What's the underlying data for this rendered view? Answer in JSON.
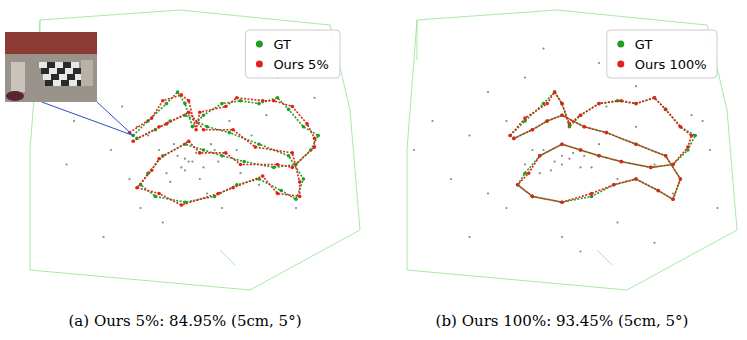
{
  "chart_data": [
    {
      "type": "scatter",
      "caption": "(a) Ours 5%: 84.95% (5cm, 5°)",
      "tick_labels": false,
      "legend": "upper right",
      "xlim": [
        0,
        100
      ],
      "ylim": [
        0,
        100
      ],
      "points": {
        "color": "#555555",
        "x": [
          30,
          35,
          42,
          48,
          52,
          55,
          58,
          45,
          50,
          53,
          47,
          40,
          62,
          65,
          70,
          25,
          20,
          15,
          38,
          60,
          44,
          56,
          49,
          51,
          33,
          68,
          75,
          80,
          28,
          54,
          46,
          57,
          43,
          50,
          59,
          37,
          64,
          72,
          18,
          85
        ],
        "y": [
          50,
          40,
          45,
          48,
          46,
          44,
          50,
          42,
          47,
          49,
          52,
          55,
          60,
          42,
          38,
          70,
          60,
          75,
          30,
          30,
          25,
          35,
          44,
          46,
          65,
          55,
          75,
          30,
          20,
          40,
          39,
          52,
          50,
          43,
          46,
          58,
          50,
          62,
          45,
          68
        ]
      },
      "series": [
        {
          "name": "GT",
          "color": "#1f9e1f",
          "marker": "o",
          "line_style": "dotted",
          "x": [
            36,
            40,
            45,
            48,
            50,
            52,
            55,
            60,
            65,
            70,
            75,
            78,
            82,
            86,
            84,
            80,
            74,
            66,
            60,
            55,
            50,
            44,
            40,
            38,
            42,
            50,
            58,
            64,
            70,
            76,
            80,
            82,
            78,
            70,
            62,
            56,
            50,
            46,
            42,
            37
          ],
          "values": [
            55,
            60,
            66,
            70,
            66,
            58,
            62,
            66,
            67,
            66,
            68,
            64,
            58,
            55,
            50,
            45,
            44,
            46,
            48,
            50,
            52,
            48,
            42,
            38,
            34,
            32,
            34,
            38,
            40,
            36,
            33,
            40,
            48,
            52,
            56,
            58,
            62,
            60,
            57,
            54
          ]
        },
        {
          "name": "Ours 5%",
          "color": "#e3201b",
          "marker": "o",
          "line_style": "dotted",
          "x": [
            35,
            41,
            44,
            49,
            51,
            53,
            54,
            61,
            64,
            71,
            74,
            79,
            83,
            85,
            85,
            79,
            75,
            65,
            61,
            54,
            51,
            43,
            41,
            37,
            43,
            49,
            59,
            63,
            71,
            75,
            81,
            81,
            79,
            69,
            63,
            55,
            51,
            45,
            43,
            36
          ],
          "values": [
            56,
            61,
            67,
            69,
            67,
            57,
            63,
            65,
            68,
            67,
            67,
            65,
            59,
            54,
            51,
            44,
            45,
            45,
            49,
            49,
            53,
            47,
            43,
            37,
            35,
            31,
            35,
            37,
            41,
            35,
            34,
            39,
            49,
            51,
            57,
            57,
            63,
            59,
            58,
            53
          ]
        }
      ]
    },
    {
      "type": "scatter",
      "caption": "(b) Ours 100%: 93.45% (5cm, 5°)",
      "tick_labels": false,
      "legend": "upper right",
      "xlim": [
        0,
        100
      ],
      "ylim": [
        0,
        100
      ],
      "points": {
        "color": "#555555",
        "x": [
          20,
          25,
          30,
          35,
          40,
          45,
          50,
          55,
          60,
          65,
          70,
          75,
          80,
          85,
          90,
          48,
          52,
          47,
          53,
          50,
          44,
          56,
          42,
          58,
          35,
          65,
          30,
          70,
          25,
          75,
          15,
          10,
          88,
          92,
          40,
          60,
          50,
          55,
          45,
          62
        ],
        "y": [
          40,
          55,
          35,
          60,
          45,
          50,
          48,
          44,
          52,
          40,
          58,
          45,
          35,
          62,
          50,
          46,
          47,
          43,
          49,
          45,
          42,
          48,
          50,
          44,
          30,
          25,
          70,
          72,
          20,
          18,
          60,
          50,
          60,
          30,
          75,
          80,
          20,
          15,
          85,
          65
        ]
      },
      "series": [
        {
          "name": "GT",
          "color": "#1f9e1f",
          "marker": "o",
          "line_style": "dotted",
          "x": [
            36,
            40,
            45,
            48,
            50,
            52,
            55,
            60,
            65,
            70,
            75,
            78,
            82,
            86,
            84,
            80,
            74,
            66,
            60,
            55,
            50,
            44,
            40,
            38,
            42,
            50,
            58,
            64,
            70,
            76,
            80,
            82,
            78,
            70,
            62,
            56,
            50,
            46,
            42,
            37
          ],
          "values": [
            55,
            60,
            66,
            70,
            66,
            58,
            62,
            66,
            67,
            66,
            68,
            64,
            58,
            55,
            50,
            45,
            44,
            46,
            48,
            50,
            52,
            48,
            42,
            38,
            34,
            32,
            34,
            38,
            40,
            36,
            33,
            40,
            48,
            52,
            56,
            58,
            62,
            60,
            57,
            54
          ]
        },
        {
          "name": "Ours 100%",
          "color": "#e3201b",
          "marker": "o",
          "line_style": "dotted",
          "x": [
            36,
            40,
            46,
            48,
            50,
            52,
            55,
            60,
            66,
            70,
            75,
            78,
            82,
            85,
            84,
            80,
            74,
            66,
            60,
            55,
            50,
            44,
            41,
            38,
            42,
            50,
            58,
            64,
            70,
            76,
            80,
            82,
            78,
            70,
            62,
            56,
            50,
            46,
            42,
            37
          ],
          "values": [
            55,
            61,
            66,
            70,
            66,
            59,
            62,
            66,
            67,
            66,
            68,
            64,
            58,
            55,
            51,
            45,
            44,
            46,
            48,
            50,
            52,
            48,
            42,
            38,
            34,
            32,
            35,
            38,
            40,
            36,
            33,
            40,
            48,
            52,
            56,
            58,
            62,
            60,
            57,
            54
          ]
        }
      ]
    }
  ]
}
